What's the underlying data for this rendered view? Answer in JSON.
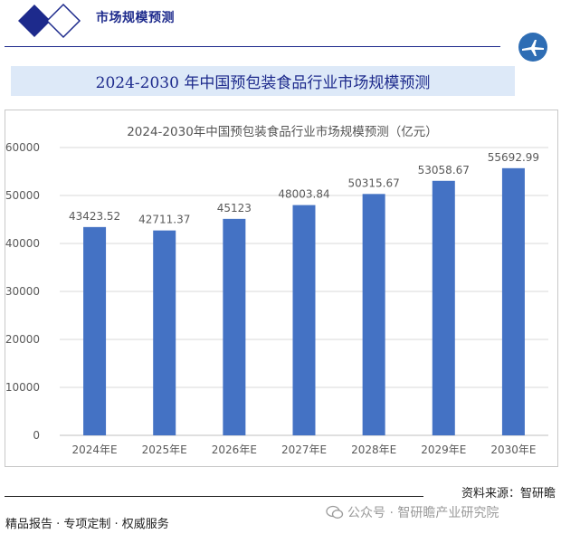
{
  "header": {
    "title": "市场规模预测"
  },
  "banner": {
    "title": "2024-2030 年中国预包装食品行业市场规模预测"
  },
  "chart_data": {
    "type": "bar",
    "title": "2024-2030年中国预包装食品行业市场规模预测（亿元）",
    "categories": [
      "2024年E",
      "2025年E",
      "2026年E",
      "2027年E",
      "2028年E",
      "2029年E",
      "2030年E"
    ],
    "values": [
      43423.52,
      42711.37,
      45123,
      48003.84,
      50315.67,
      53058.67,
      55692.99
    ],
    "data_labels": [
      "43423.52",
      "42711.37",
      "45123",
      "48003.84",
      "50315.67",
      "53058.67",
      "55692.99"
    ],
    "y_ticks": [
      "0",
      "10000",
      "20000",
      "30000",
      "40000",
      "50000",
      "60000"
    ],
    "ylim": [
      0,
      60000
    ],
    "grid": true,
    "bar_color": "#4472c4"
  },
  "footer": {
    "source": "资料来源：智研瞻",
    "left": "精品报告 · 专项定制 · 权威服务",
    "watermark": "公众号 · 智研瞻产业研究院"
  },
  "colors": {
    "brand": "#1d2a8c",
    "banner_bg": "#dde9f8"
  },
  "icons": {
    "logo": "diamond-logo-icon",
    "badge": "plane-badge-icon",
    "watermark": "wechat-icon"
  }
}
